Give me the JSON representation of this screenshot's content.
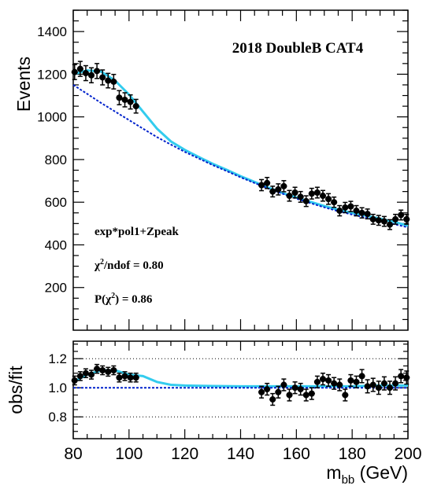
{
  "chart_data": [
    {
      "type": "scatter",
      "panel": "main",
      "title": "2018 DoubleB CAT4",
      "xlabel": "",
      "ylabel": "Events",
      "xlim": [
        80,
        200
      ],
      "ylim": [
        0,
        1500
      ],
      "yticks": [
        200,
        400,
        600,
        800,
        1000,
        1200,
        1400
      ],
      "grid": false,
      "annotations": {
        "fit_model": "exp*pol1+Zpeak",
        "chi2_prefix": "χ",
        "chi2_sup": "2",
        "chi2_suffix": "/ndof = 0.80",
        "prob_prefix": "P(χ",
        "prob_sup": "2",
        "prob_suffix": ") = 0.86"
      },
      "series": [
        {
          "style": "points-with-errors",
          "color": "#000000",
          "x": [
            80.5,
            82.5,
            84.5,
            86.5,
            88.5,
            90.5,
            92.5,
            94.5,
            96.5,
            98.5,
            100.5,
            102.5,
            147.5,
            149.5,
            151.5,
            153.5,
            155.5,
            157.5,
            159.5,
            161.5,
            163.5,
            165.5,
            167.5,
            169.5,
            171.5,
            173.5,
            175.5,
            177.5,
            179.5,
            181.5,
            183.5,
            185.5,
            187.5,
            189.5,
            191.5,
            193.5,
            195.5,
            197.5,
            199.5
          ],
          "y": [
            1210,
            1225,
            1205,
            1195,
            1215,
            1185,
            1170,
            1165,
            1090,
            1080,
            1070,
            1050,
            680,
            690,
            650,
            660,
            675,
            630,
            645,
            625,
            605,
            640,
            645,
            630,
            615,
            600,
            560,
            575,
            580,
            560,
            550,
            545,
            520,
            515,
            510,
            495,
            520,
            540,
            520
          ],
          "yerr": [
            35,
            35,
            35,
            35,
            35,
            35,
            34,
            34,
            33,
            33,
            33,
            32,
            26,
            26,
            25,
            26,
            26,
            25,
            25,
            25,
            25,
            25,
            25,
            25,
            25,
            24,
            24,
            24,
            24,
            24,
            24,
            23,
            23,
            23,
            23,
            23,
            23,
            23,
            23
          ]
        },
        {
          "style": "fit-curve",
          "color": "#33ccee",
          "x": [
            80,
            85,
            90,
            95,
            100,
            105,
            110,
            115,
            120,
            125,
            130,
            135,
            140,
            145,
            150,
            155,
            160,
            165,
            170,
            175,
            180,
            185,
            190,
            195,
            200
          ],
          "y": [
            1200,
            1218,
            1212,
            1170,
            1105,
            1025,
            945,
            885,
            845,
            812,
            780,
            752,
            722,
            695,
            668,
            643,
            622,
            602,
            582,
            565,
            550,
            537,
            523,
            508,
            490
          ]
        },
        {
          "style": "background-dashed",
          "color": "#0022cc",
          "x": [
            80,
            85,
            90,
            95,
            100,
            105,
            110,
            115,
            120,
            125,
            130,
            135,
            140,
            145,
            150,
            155,
            160,
            165,
            170,
            175,
            180,
            185,
            190,
            195,
            200
          ],
          "y": [
            1150,
            1108,
            1065,
            1025,
            985,
            945,
            905,
            870,
            836,
            805,
            774,
            746,
            717,
            690,
            664,
            640,
            617,
            596,
            576,
            558,
            542,
            527,
            512,
            497,
            482
          ]
        }
      ]
    },
    {
      "type": "scatter",
      "panel": "ratio",
      "ylabel": "obs/fit",
      "xlabel_main": "m",
      "xlabel_sub": "bb",
      "xlabel_unit": " (GeV)",
      "xlim": [
        80,
        200
      ],
      "ylim": [
        0.65,
        1.32
      ],
      "xticks": [
        80,
        100,
        120,
        140,
        160,
        180,
        200
      ],
      "yticks": [
        "0.8",
        "1.0",
        "1.2"
      ],
      "reference_lines": [
        0.8,
        1.2
      ],
      "series": [
        {
          "style": "points-with-errors",
          "color": "#000000",
          "x": [
            80.5,
            82.5,
            84.5,
            86.5,
            88.5,
            90.5,
            92.5,
            94.5,
            96.5,
            98.5,
            100.5,
            102.5,
            147.5,
            149.5,
            151.5,
            153.5,
            155.5,
            157.5,
            159.5,
            161.5,
            163.5,
            165.5,
            167.5,
            169.5,
            171.5,
            173.5,
            175.5,
            177.5,
            179.5,
            181.5,
            183.5,
            185.5,
            187.5,
            189.5,
            191.5,
            193.5,
            195.5,
            197.5,
            199.5
          ],
          "y": [
            1.05,
            1.08,
            1.1,
            1.09,
            1.13,
            1.12,
            1.11,
            1.12,
            1.07,
            1.08,
            1.07,
            1.07,
            0.97,
            0.99,
            0.92,
            0.97,
            1.02,
            0.95,
            1.0,
            0.99,
            0.95,
            0.96,
            1.04,
            1.06,
            1.05,
            1.03,
            1.02,
            0.95,
            1.05,
            1.04,
            1.08,
            1.01,
            1.02,
            1.0,
            1.03,
            1.0,
            1.03,
            1.08,
            1.07
          ],
          "yerr": [
            0.03,
            0.03,
            0.03,
            0.03,
            0.03,
            0.03,
            0.03,
            0.03,
            0.03,
            0.03,
            0.03,
            0.03,
            0.04,
            0.04,
            0.04,
            0.04,
            0.04,
            0.04,
            0.04,
            0.04,
            0.04,
            0.04,
            0.04,
            0.04,
            0.04,
            0.04,
            0.04,
            0.04,
            0.04,
            0.04,
            0.045,
            0.045,
            0.045,
            0.045,
            0.045,
            0.045,
            0.045,
            0.045,
            0.045
          ]
        },
        {
          "style": "fit-curve",
          "color": "#33ccee",
          "x": [
            80,
            85,
            90,
            95,
            100,
            105,
            110,
            115,
            120,
            130,
            140,
            150,
            160,
            170,
            180,
            190,
            200
          ],
          "y": [
            1.04,
            1.09,
            1.12,
            1.12,
            1.09,
            1.08,
            1.04,
            1.02,
            1.015,
            1.012,
            1.01,
            1.01,
            1.01,
            1.01,
            1.01,
            1.015,
            1.015
          ]
        },
        {
          "style": "background-dashed",
          "color": "#0022cc",
          "x": [
            80,
            200
          ],
          "y": [
            1.0,
            1.0
          ]
        }
      ]
    }
  ]
}
